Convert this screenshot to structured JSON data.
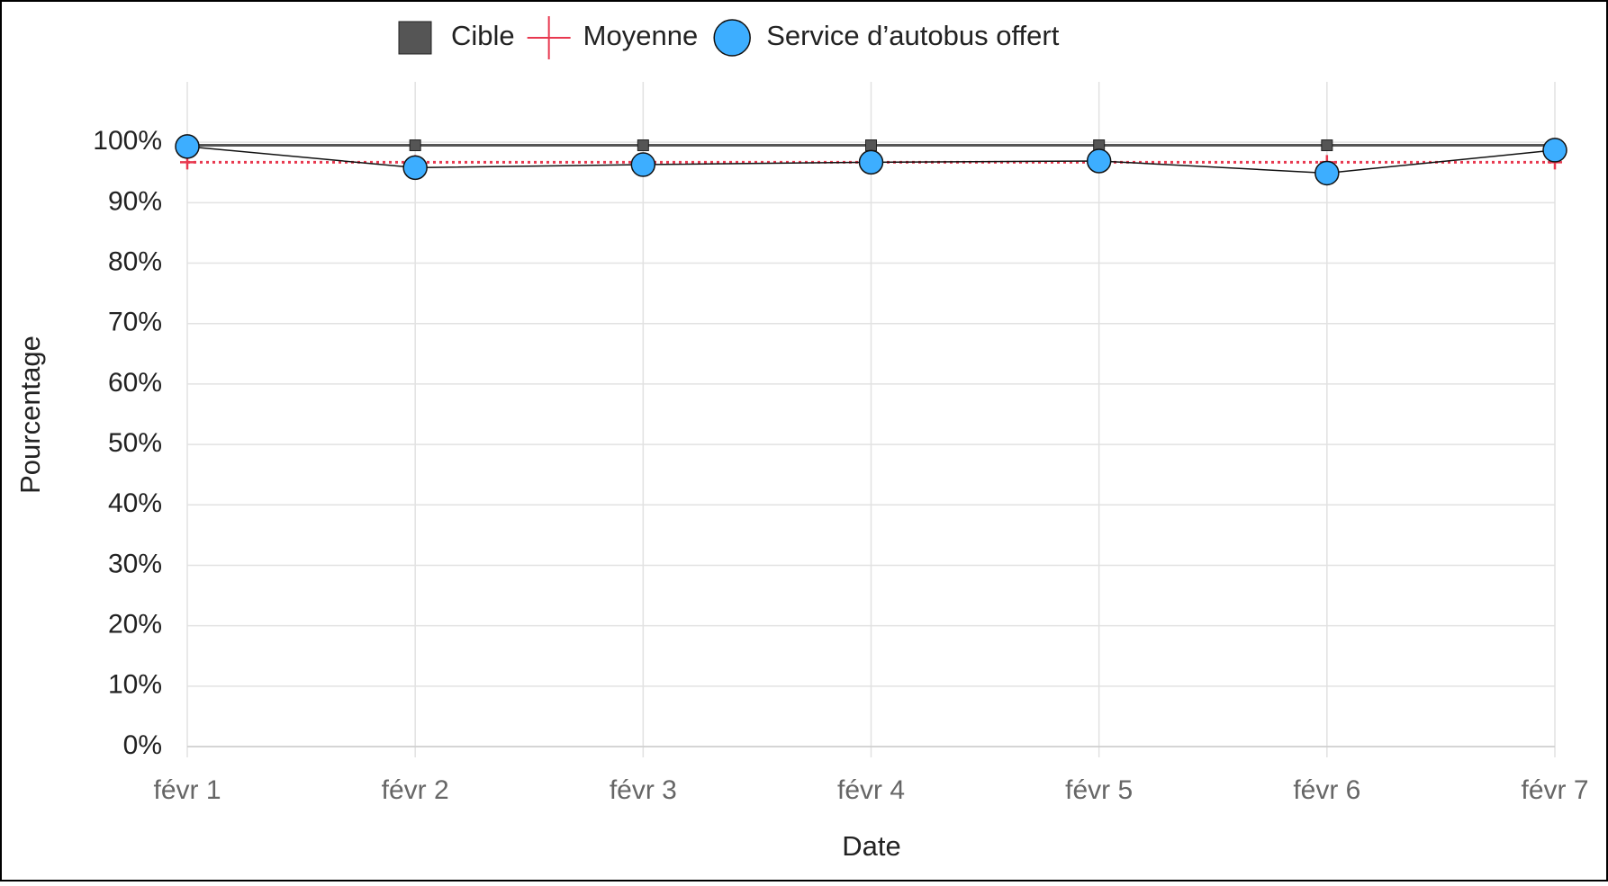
{
  "chart_data": {
    "type": "line",
    "x_label": "Date",
    "y_label": "Pourcentage",
    "categories": [
      "févr 1",
      "févr 2",
      "févr 3",
      "févr 4",
      "févr 5",
      "févr 6",
      "févr 7"
    ],
    "series": [
      {
        "name": "Cible",
        "color": "#555555",
        "values": [
          99.5,
          99.5,
          99.5,
          99.5,
          99.5,
          99.5,
          99.5
        ]
      },
      {
        "name": "Moyenne",
        "color": "#e8384f",
        "values": [
          96.7,
          96.7,
          96.7,
          96.7,
          96.7,
          96.7,
          96.7
        ]
      },
      {
        "name": "Service d’autobus offert",
        "color": "#3daeff",
        "values": [
          99.3,
          95.8,
          96.3,
          96.7,
          96.9,
          94.9,
          98.7
        ]
      }
    ],
    "ylim": [
      0,
      110
    ],
    "yticks": [
      {
        "value": 0,
        "label": "0%"
      },
      {
        "value": 10,
        "label": "10%"
      },
      {
        "value": 20,
        "label": "20%"
      },
      {
        "value": 30,
        "label": "30%"
      },
      {
        "value": 40,
        "label": "40%"
      },
      {
        "value": 50,
        "label": "50%"
      },
      {
        "value": 60,
        "label": "60%"
      },
      {
        "value": 70,
        "label": "70%"
      },
      {
        "value": 80,
        "label": "80%"
      },
      {
        "value": 90,
        "label": "90%"
      },
      {
        "value": 100,
        "label": "100%"
      }
    ],
    "grid": true,
    "legend": "top"
  }
}
